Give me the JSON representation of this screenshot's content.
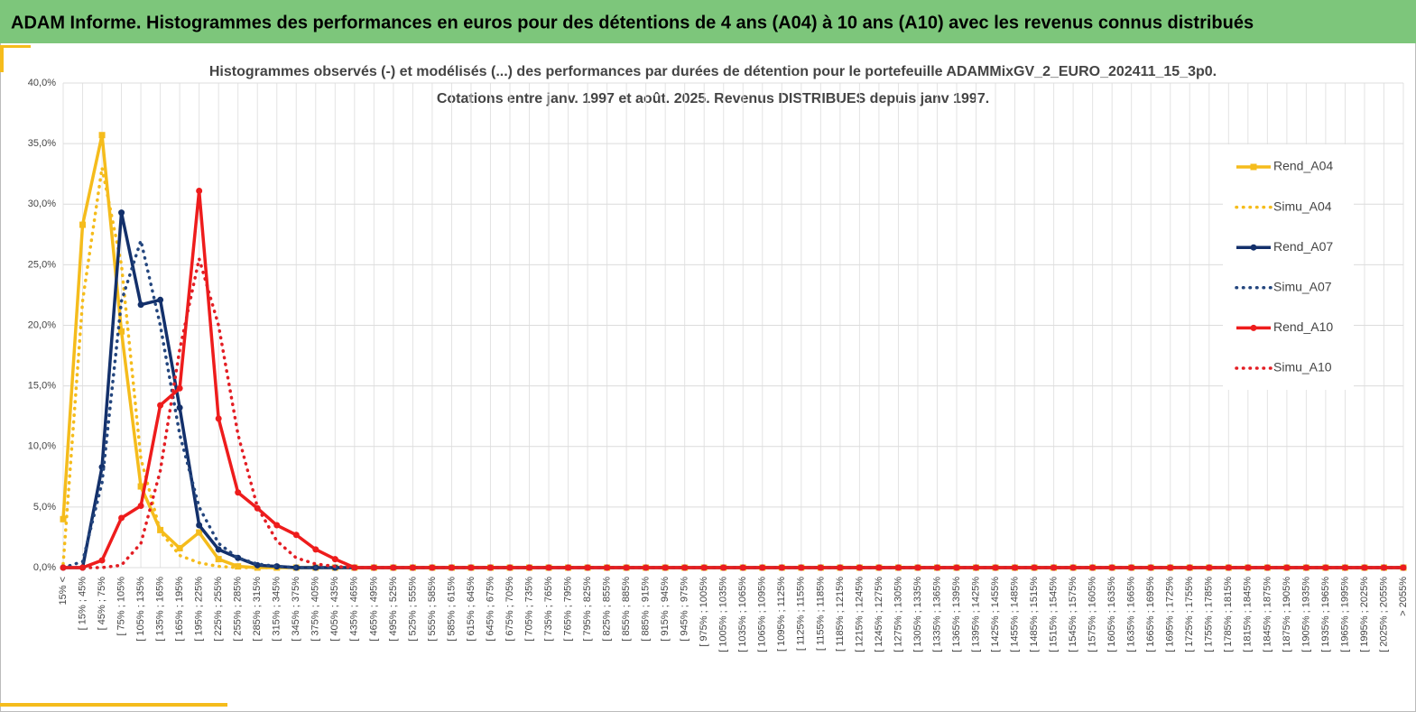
{
  "header": "ADAM Informe. Histogrammes des performances en euros pour des détentions de 4 ans (A04) à 10 ans (A10) avec les revenus connus distribués",
  "chart_data": {
    "type": "line",
    "title": "Histogrammes observés (-) et modélisés (...) des performances par durées de détention pour le portefeuille ADAMMixGV_2_EURO_202411_15_3p0.",
    "subtitle": "Cotations entre janv. 1997 et août. 2025. Revenus DISTRIBUES depuis janv 1997.",
    "categories": [
      "15% <",
      "[ 15% ; 45%",
      "[ 45% ; 75%",
      "[ 75% ; 105%",
      "[ 105% ; 135%",
      "[ 135% ; 165%",
      "[ 165% ; 195%",
      "[ 195% ; 225%",
      "[ 225% ; 255%",
      "[ 255% ; 285%",
      "[ 285% ; 315%",
      "[ 315% ; 345%",
      "[ 345% ; 375%",
      "[ 375% ; 405%",
      "[ 405% ; 435%",
      "[ 435% ; 465%",
      "[ 465% ; 495%",
      "[ 495% ; 525%",
      "[ 525% ; 555%",
      "[ 555% ; 585%",
      "[ 585% ; 615%",
      "[ 615% ; 645%",
      "[ 645% ; 675%",
      "[ 675% ; 705%",
      "[ 705% ; 735%",
      "[ 735% ; 765%",
      "[ 765% ; 795%",
      "[ 795% ; 825%",
      "[ 825% ; 855%",
      "[ 855% ; 885%",
      "[ 885% ; 915%",
      "[ 915% ; 945%",
      "[ 945% ; 975%",
      "[ 975% ; 1005%",
      "[ 1005% ; 1035%",
      "[ 1035% ; 1065%",
      "[ 1065% ; 1095%",
      "[ 1095% ; 1125%",
      "[ 1125% ; 1155%",
      "[ 1155% ; 1185%",
      "[ 1185% ; 1215%",
      "[ 1215% ; 1245%",
      "[ 1245% ; 1275%",
      "[ 1275% ; 1305%",
      "[ 1305% ; 1335%",
      "[ 1335% ; 1365%",
      "[ 1365% ; 1395%",
      "[ 1395% ; 1425%",
      "[ 1425% ; 1455%",
      "[ 1455% ; 1485%",
      "[ 1485% ; 1515%",
      "[ 1515% ; 1545%",
      "[ 1545% ; 1575%",
      "[ 1575% ; 1605%",
      "[ 1605% ; 1635%",
      "[ 1635% ; 1665%",
      "[ 1665% ; 1695%",
      "[ 1695% ; 1725%",
      "[ 1725% ; 1755%",
      "[ 1755% ; 1785%",
      "[ 1785% ; 1815%",
      "[ 1815% ; 1845%",
      "[ 1845% ; 1875%",
      "[ 1875% ; 1905%",
      "[ 1905% ; 1935%",
      "[ 1935% ; 1965%",
      "[ 1965% ; 1995%",
      "[ 1995% ; 2025%",
      "[ 2025% ; 2055%",
      "> 2055%"
    ],
    "series": [
      {
        "name": "Rend_A04",
        "color": "#f5bc1c",
        "dash": "solid",
        "marker": "square",
        "values": [
          4.0,
          28.3,
          35.7,
          19.5,
          6.7,
          3.1,
          1.6,
          2.9,
          0.7,
          0.1,
          0,
          0,
          0,
          0,
          0,
          0,
          0,
          0,
          0,
          0,
          0,
          0,
          0,
          0,
          0,
          0,
          0,
          0,
          0,
          0,
          0,
          0,
          0,
          0,
          0,
          0,
          0,
          0,
          0,
          0,
          0,
          0,
          0,
          0,
          0,
          0,
          0,
          0,
          0,
          0,
          0,
          0,
          0,
          0,
          0,
          0,
          0,
          0,
          0,
          0,
          0,
          0,
          0,
          0,
          0,
          0,
          0,
          0,
          0,
          0
        ]
      },
      {
        "name": "Simu_A04",
        "color": "#f5bc1c",
        "dash": "dotted",
        "marker": null,
        "values": [
          0.3,
          22,
          33,
          25,
          9,
          3,
          1,
          0.4,
          0.1,
          0,
          0,
          0,
          0,
          0,
          0,
          0,
          0,
          0,
          0,
          0,
          0,
          0,
          0,
          0,
          0,
          0,
          0,
          0,
          0,
          0,
          0,
          0,
          0,
          0,
          0,
          0,
          0,
          0,
          0,
          0,
          0,
          0,
          0,
          0,
          0,
          0,
          0,
          0,
          0,
          0,
          0,
          0,
          0,
          0,
          0,
          0,
          0,
          0,
          0,
          0,
          0,
          0,
          0,
          0,
          0,
          0,
          0,
          0,
          0,
          0
        ]
      },
      {
        "name": "Rend_A07",
        "color": "#13306b",
        "dash": "solid",
        "marker": "circle",
        "values": [
          0,
          0,
          8.3,
          29.3,
          21.7,
          22.1,
          13.2,
          3.5,
          1.5,
          0.8,
          0.2,
          0.1,
          0,
          0,
          0,
          0,
          0,
          0,
          0,
          0,
          0,
          0,
          0,
          0,
          0,
          0,
          0,
          0,
          0,
          0,
          0,
          0,
          0,
          0,
          0,
          0,
          0,
          0,
          0,
          0,
          0,
          0,
          0,
          0,
          0,
          0,
          0,
          0,
          0,
          0,
          0,
          0,
          0,
          0,
          0,
          0,
          0,
          0,
          0,
          0,
          0,
          0,
          0,
          0,
          0,
          0,
          0,
          0,
          0,
          0
        ]
      },
      {
        "name": "Simu_A07",
        "color": "#24467e",
        "dash": "dotted",
        "marker": null,
        "values": [
          0,
          0.5,
          7,
          22,
          27,
          20,
          11,
          5,
          2,
          0.8,
          0.3,
          0.1,
          0,
          0,
          0,
          0,
          0,
          0,
          0,
          0,
          0,
          0,
          0,
          0,
          0,
          0,
          0,
          0,
          0,
          0,
          0,
          0,
          0,
          0,
          0,
          0,
          0,
          0,
          0,
          0,
          0,
          0,
          0,
          0,
          0,
          0,
          0,
          0,
          0,
          0,
          0,
          0,
          0,
          0,
          0,
          0,
          0,
          0,
          0,
          0,
          0,
          0,
          0,
          0,
          0,
          0,
          0,
          0,
          0,
          0
        ]
      },
      {
        "name": "Rend_A10",
        "color": "#ee1c1c",
        "dash": "solid",
        "marker": "circle",
        "values": [
          0,
          0,
          0.6,
          4.1,
          5.1,
          13.4,
          14.8,
          31.1,
          12.3,
          6.2,
          4.9,
          3.5,
          2.7,
          1.5,
          0.7,
          0,
          0,
          0,
          0,
          0,
          0,
          0,
          0,
          0,
          0,
          0,
          0,
          0,
          0,
          0,
          0,
          0,
          0,
          0,
          0,
          0,
          0,
          0,
          0,
          0,
          0,
          0,
          0,
          0,
          0,
          0,
          0,
          0,
          0,
          0,
          0,
          0,
          0,
          0,
          0,
          0,
          0,
          0,
          0,
          0,
          0,
          0,
          0,
          0,
          0,
          0,
          0,
          0,
          0,
          0
        ]
      },
      {
        "name": "Simu_A10",
        "color": "#e31e24",
        "dash": "dotted",
        "marker": null,
        "values": [
          0,
          0,
          0,
          0.2,
          2,
          8,
          18,
          25.5,
          20,
          11,
          5,
          2.2,
          0.8,
          0.3,
          0.1,
          0,
          0,
          0,
          0,
          0,
          0,
          0,
          0,
          0,
          0,
          0,
          0,
          0,
          0,
          0,
          0,
          0,
          0,
          0,
          0,
          0,
          0,
          0,
          0,
          0,
          0,
          0,
          0,
          0,
          0,
          0,
          0,
          0,
          0,
          0,
          0,
          0,
          0,
          0,
          0,
          0,
          0,
          0,
          0,
          0,
          0,
          0,
          0,
          0,
          0,
          0,
          0,
          0,
          0,
          0
        ]
      }
    ],
    "ylim": [
      0,
      40
    ],
    "yticks": [
      {
        "value": 0,
        "label": "0,0%"
      },
      {
        "value": 5,
        "label": "5,0%"
      },
      {
        "value": 10,
        "label": "10,0%"
      },
      {
        "value": 15,
        "label": "15,0%"
      },
      {
        "value": 20,
        "label": "20,0%"
      },
      {
        "value": 25,
        "label": "25,0%"
      },
      {
        "value": 30,
        "label": "30,0%"
      },
      {
        "value": 35,
        "label": "35,0%"
      },
      {
        "value": 40,
        "label": "40,0%"
      }
    ],
    "grid": true,
    "legend": "right"
  }
}
